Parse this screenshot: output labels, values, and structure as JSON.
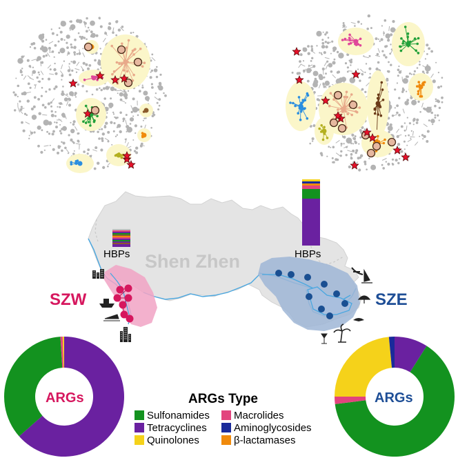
{
  "map": {
    "region_label": "Shen Zhen",
    "west_label": "SZW",
    "east_label": "SZE",
    "hbp_label_west": "HBPs",
    "hbp_label_east": "HBPs"
  },
  "donuts": {
    "center_label": "ARGs"
  },
  "legend": {
    "title": "ARGs Type",
    "items": [
      {
        "label": "Sulfonamides",
        "color": "#13921f"
      },
      {
        "label": "Macrolides",
        "color": "#e2447d"
      },
      {
        "label": "Tetracyclines",
        "color": "#6a21a0"
      },
      {
        "label": "Aminoglycosides",
        "color": "#1a2a9a"
      },
      {
        "label": "Quinolones",
        "color": "#f5d21a"
      },
      {
        "label": "β-lactamases",
        "color": "#f08a0c"
      }
    ]
  },
  "colors": {
    "west_accent": "#d6175e",
    "east_accent": "#1e4e96",
    "land": "#e4e4e4",
    "west_zone": "#f1a3c4",
    "east_zone": "#9fb6d6",
    "network_gray": "#b3b3b3",
    "cluster_highlight": "#fbf6c9",
    "star": "#e8102a"
  }
}
